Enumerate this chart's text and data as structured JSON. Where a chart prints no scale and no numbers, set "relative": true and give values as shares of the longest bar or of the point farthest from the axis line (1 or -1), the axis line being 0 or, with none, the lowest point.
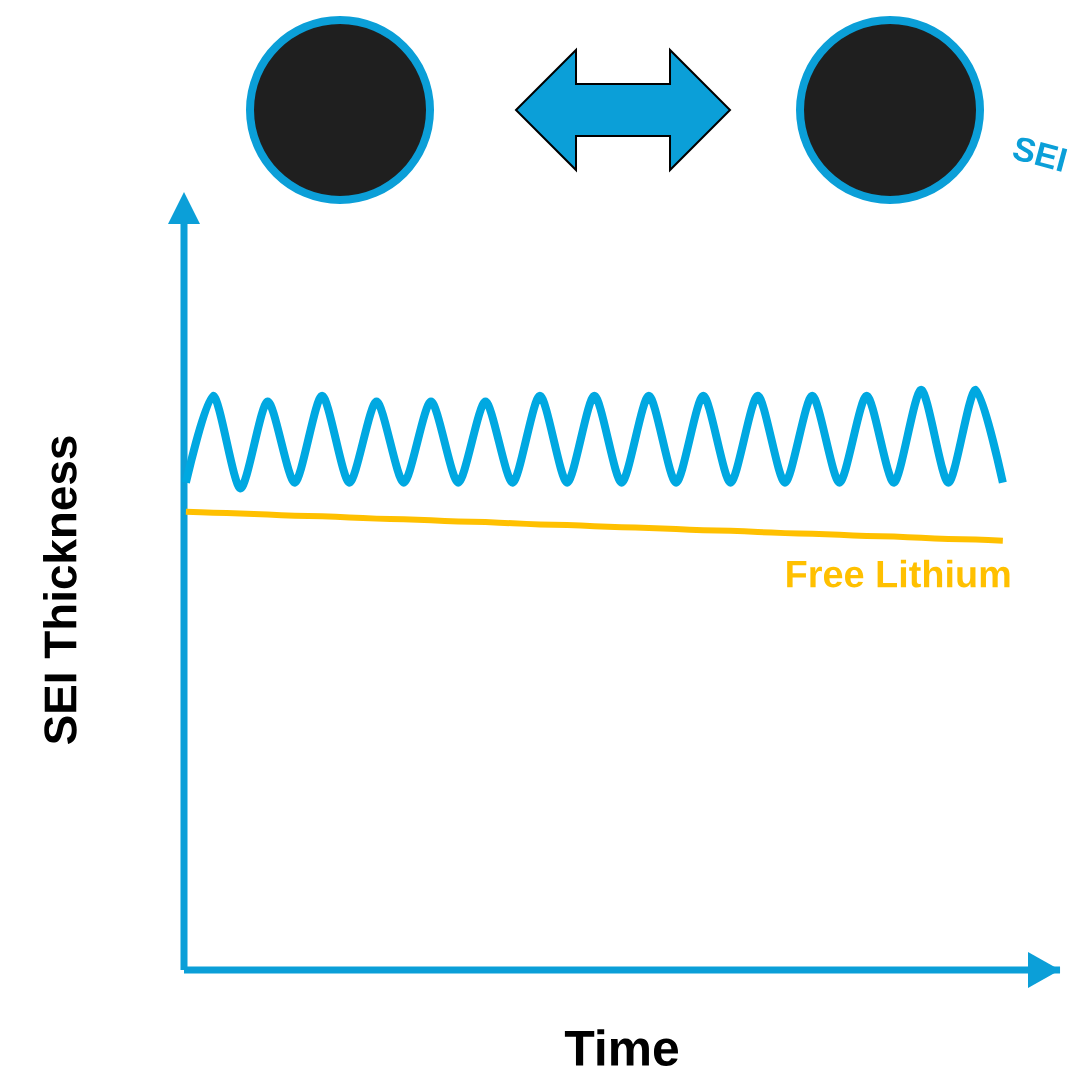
{
  "chart_data": {
    "type": "line",
    "relative": true,
    "xlabel": "Time",
    "ylabel": "SEI Thickness",
    "categories": [
      null,
      null,
      null,
      null,
      null,
      null,
      null,
      null,
      null,
      null,
      null,
      null,
      null,
      null,
      null,
      null,
      null,
      null,
      null,
      null,
      null,
      null,
      null,
      null,
      null,
      null,
      null,
      null,
      null,
      null,
      null
    ],
    "annotations": [
      "SEI"
    ],
    "series": [
      {
        "color": "#00a8e1",
        "values": [
          0.84,
          0.99,
          0.83,
          0.98,
          0.84,
          0.99,
          0.84,
          0.98,
          0.84,
          0.98,
          0.84,
          0.98,
          0.84,
          0.99,
          0.84,
          0.99,
          0.84,
          0.99,
          0.84,
          0.99,
          0.84,
          0.99,
          0.84,
          0.99,
          0.84,
          0.99,
          0.84,
          1,
          0.84,
          1,
          0.84
        ]
      },
      {
        "name": "Free Lithium",
        "color": "#ffc000",
        "values": [
          0.79,
          0.788,
          0.787,
          0.785,
          0.783,
          0.782,
          0.78,
          0.778,
          0.777,
          0.775,
          0.773,
          0.772,
          0.77,
          0.768,
          0.767,
          0.765,
          0.763,
          0.762,
          0.76,
          0.758,
          0.757,
          0.755,
          0.753,
          0.752,
          0.75,
          0.748,
          0.747,
          0.745,
          0.743,
          0.742,
          0.74
        ]
      }
    ]
  }
}
